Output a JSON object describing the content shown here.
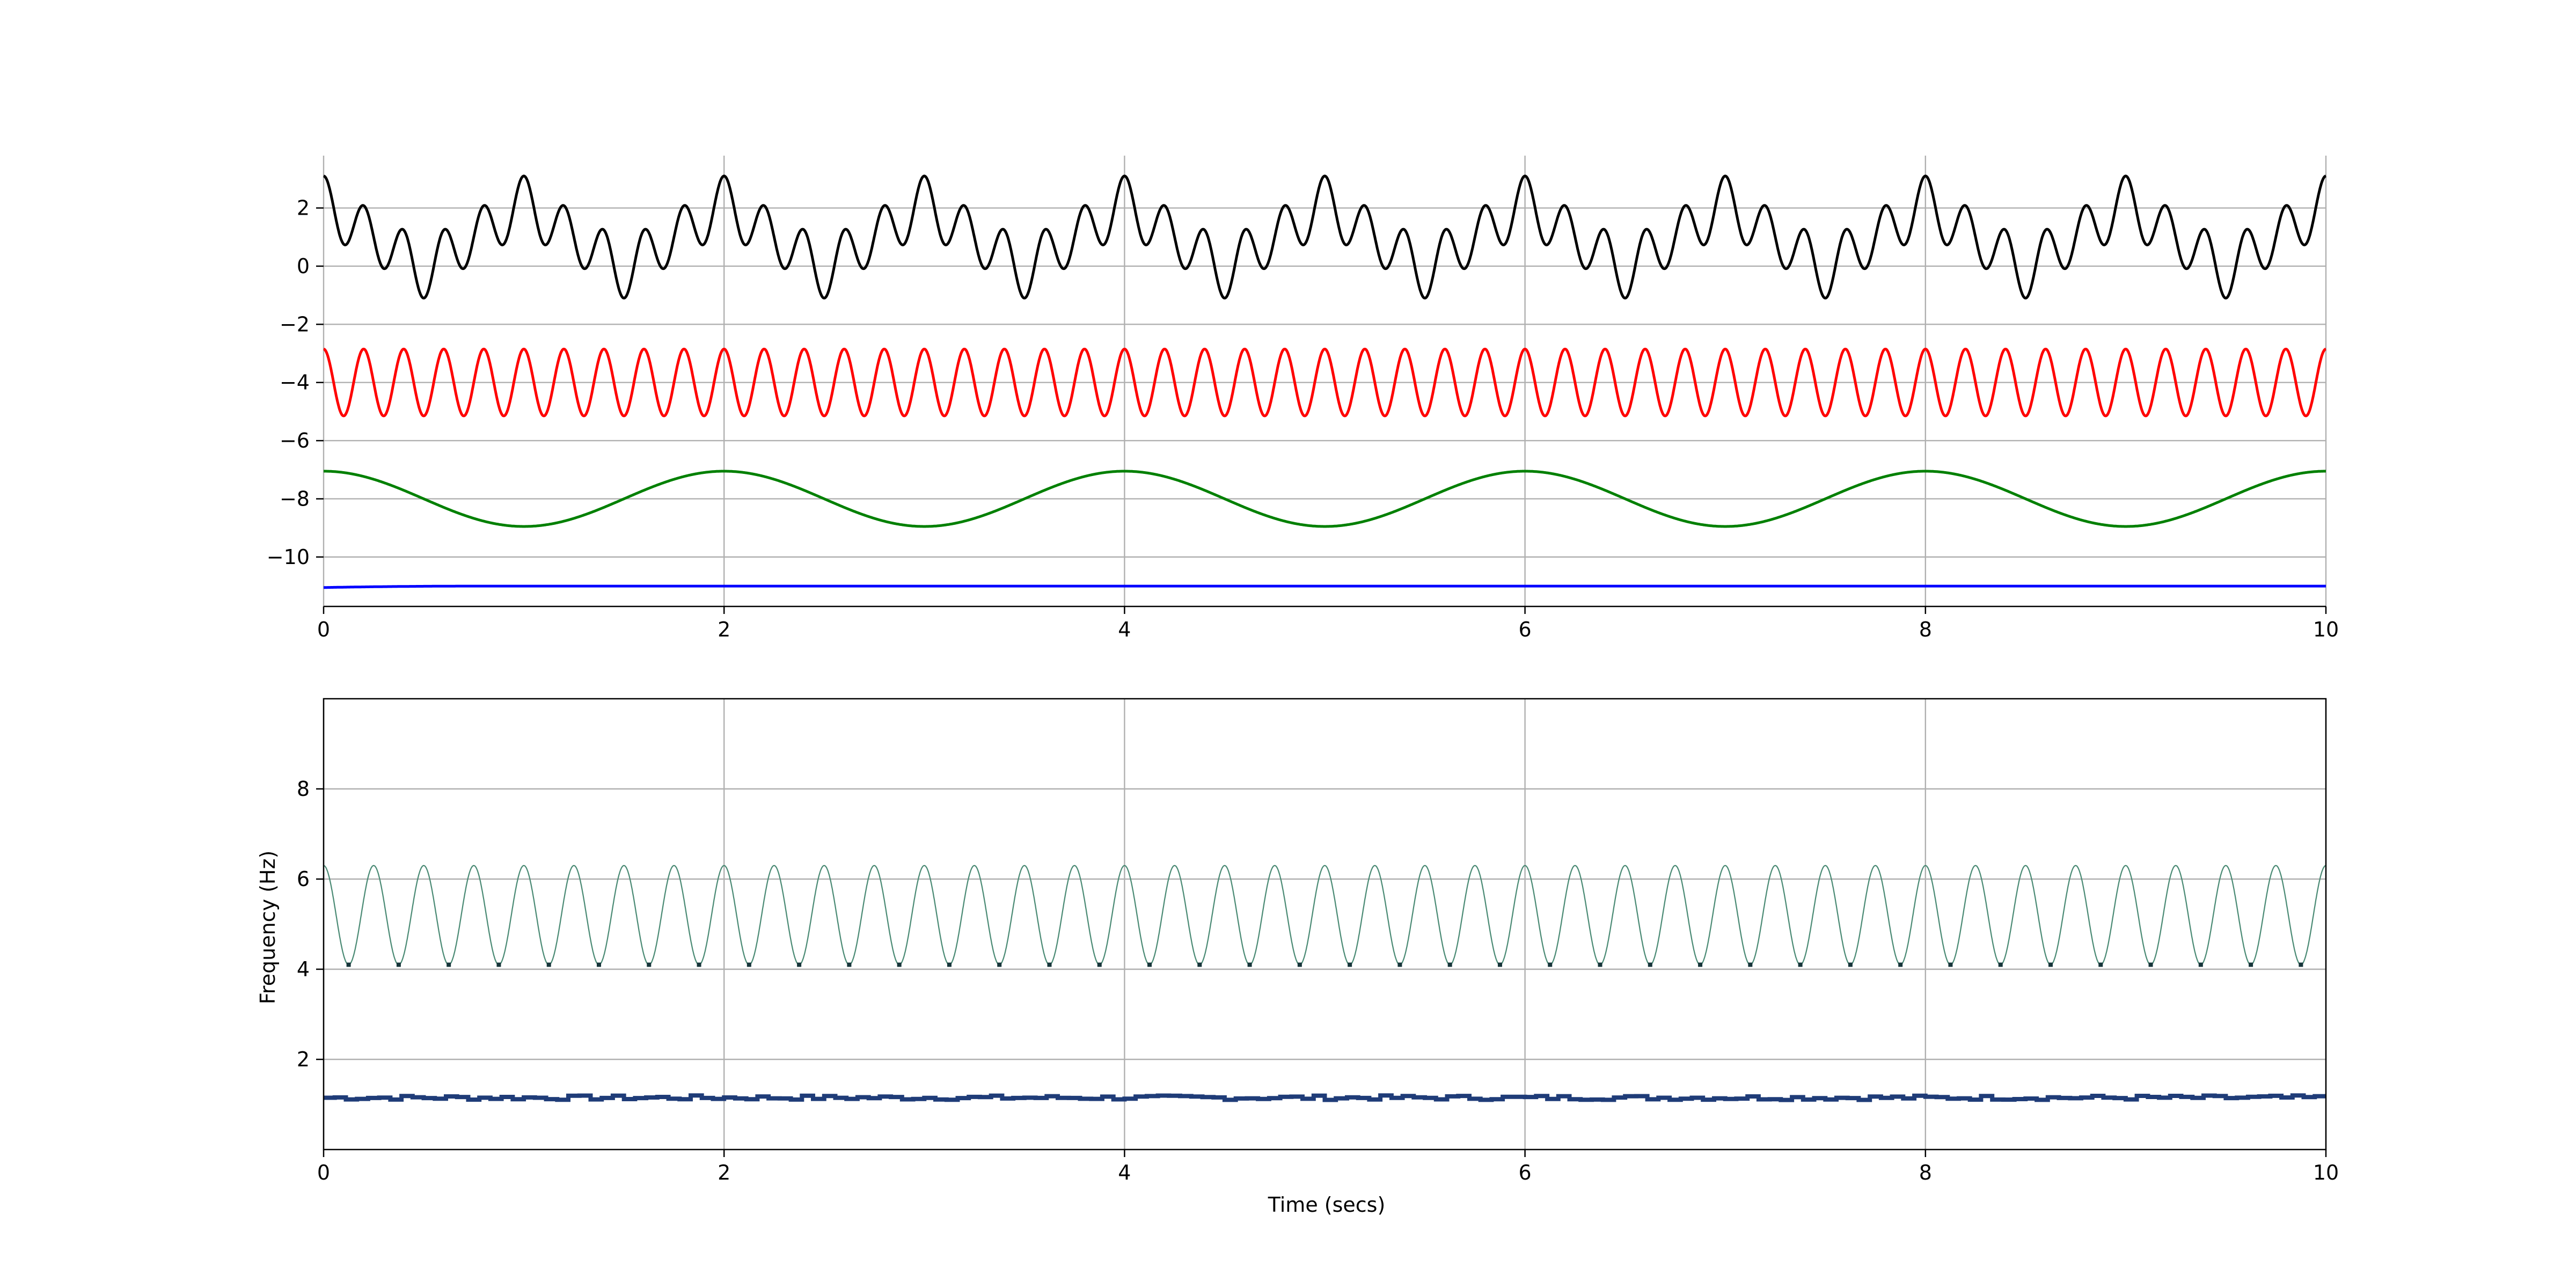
{
  "chart_data": [
    {
      "type": "line",
      "title": "",
      "xlabel": "",
      "ylabel": "",
      "xlim": [
        0,
        10
      ],
      "ylim": [
        -11.7,
        3.8
      ],
      "grid": true,
      "x_ticks": [
        "0",
        "2",
        "4",
        "6",
        "8",
        "10"
      ],
      "y_ticks": [
        "2",
        "0",
        "−2",
        "−4",
        "−6",
        "−8",
        "−10"
      ],
      "series": [
        {
          "color": "#000000",
          "offset": 1.0,
          "components": [
            {
              "amplitude": 0.95,
              "frequency_hz": 1.0
            },
            {
              "amplitude": 0.95,
              "frequency_hz": 5.0
            },
            {
              "amplitude": 0.2,
              "frequency_hz": 3.0
            }
          ]
        },
        {
          "color": "#ff0000",
          "offset": -4.0,
          "components": [
            {
              "amplitude": 1.15,
              "frequency_hz": 5.0
            }
          ]
        },
        {
          "color": "#008000",
          "offset": -8.0,
          "components": [
            {
              "amplitude": 0.95,
              "frequency_hz": 0.5
            }
          ]
        },
        {
          "color": "#0000ff",
          "offset": -11.0,
          "start_value": -11.05,
          "settle_time": 0.8
        }
      ]
    },
    {
      "type": "line",
      "title": "",
      "xlabel": "Time (secs)",
      "ylabel": "Frequency (Hz)",
      "xlim": [
        0,
        10
      ],
      "ylim": [
        0,
        10
      ],
      "grid": true,
      "x_ticks": [
        "0",
        "2",
        "4",
        "6",
        "8",
        "10"
      ],
      "y_ticks": [
        "2",
        "4",
        "6",
        "8"
      ],
      "series": [
        {
          "color": "#4a8a74",
          "center": 5.2,
          "amplitude": 1.1,
          "frequency_hz": 4.0
        },
        {
          "color": "#1f3c78",
          "level": 1.15,
          "jitter": 0.05
        }
      ]
    }
  ]
}
